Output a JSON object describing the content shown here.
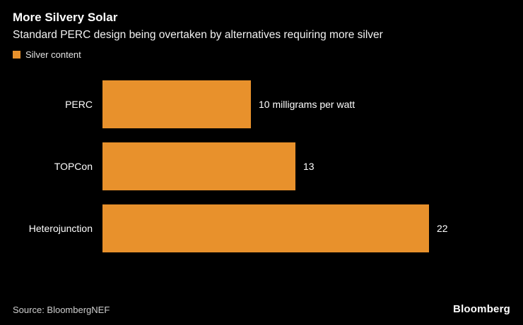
{
  "header": {
    "title": "More Silvery Solar",
    "subtitle": "Standard PERC design being overtaken by alternatives requiring more silver"
  },
  "legend": {
    "label": "Silver content",
    "color": "#E8912C"
  },
  "chart_data": {
    "type": "bar",
    "orientation": "horizontal",
    "title": "More Silvery Solar",
    "subtitle": "Standard PERC design being overtaken by alternatives requiring more silver",
    "series_name": "Silver content",
    "categories": [
      "PERC",
      "TOPCon",
      "Heterojunction"
    ],
    "values": [
      10,
      13,
      22
    ],
    "value_labels": [
      "10 milligrams per watt",
      "13",
      "22"
    ],
    "unit": "milligrams per watt",
    "bar_color": "#E8912C",
    "xlim": [
      0,
      22
    ],
    "grid": false,
    "legend_position": "top-left"
  },
  "footer": {
    "source": "Source: BloombergNEF",
    "logo": "Bloomberg"
  }
}
